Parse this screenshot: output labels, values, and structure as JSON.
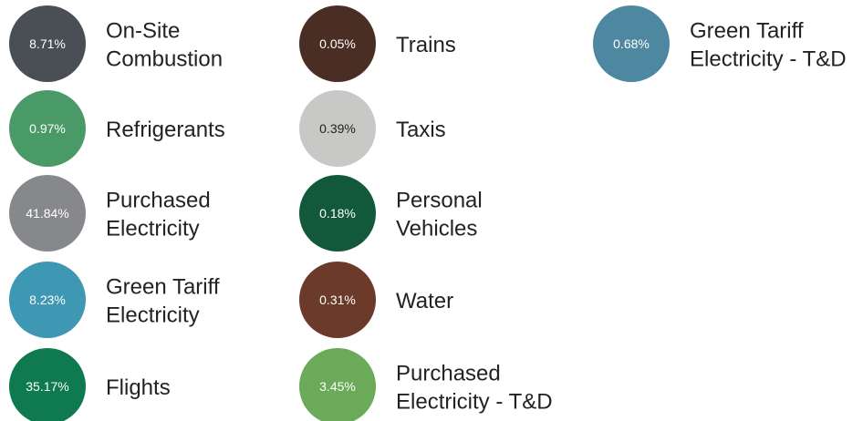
{
  "items": [
    {
      "lines": [
        "On-Site",
        "Combustion"
      ],
      "value": "8.71%",
      "color": "#4a4e55"
    },
    {
      "lines": [
        "Refrigerants"
      ],
      "value": "0.97%",
      "color": "#4a9a68"
    },
    {
      "lines": [
        "Purchased",
        "Electricity"
      ],
      "value": "41.84%",
      "color": "#87888b"
    },
    {
      "lines": [
        "Green Tariff",
        "Electricity"
      ],
      "value": "8.23%",
      "color": "#3e97b3"
    },
    {
      "lines": [
        "Flights"
      ],
      "value": "35.17%",
      "color": "#0f7a4f"
    },
    {
      "lines": [
        "Trains"
      ],
      "value": "0.05%",
      "color": "#4a2e23"
    },
    {
      "lines": [
        "Taxis"
      ],
      "value": "0.39%",
      "color": "#c8c9c7"
    },
    {
      "lines": [
        "Personal",
        "Vehicles"
      ],
      "value": "0.18%",
      "color": "#11593a"
    },
    {
      "lines": [
        "Water"
      ],
      "value": "0.31%",
      "color": "#6b3a2a"
    },
    {
      "lines": [
        "Purchased",
        "Electricity - T&D"
      ],
      "value": "3.45%",
      "color": "#6aaa58"
    },
    {
      "lines": [
        "Green Tariff",
        "Electricity - T&D"
      ],
      "value": "0.68%",
      "color": "#4d87a0"
    }
  ]
}
